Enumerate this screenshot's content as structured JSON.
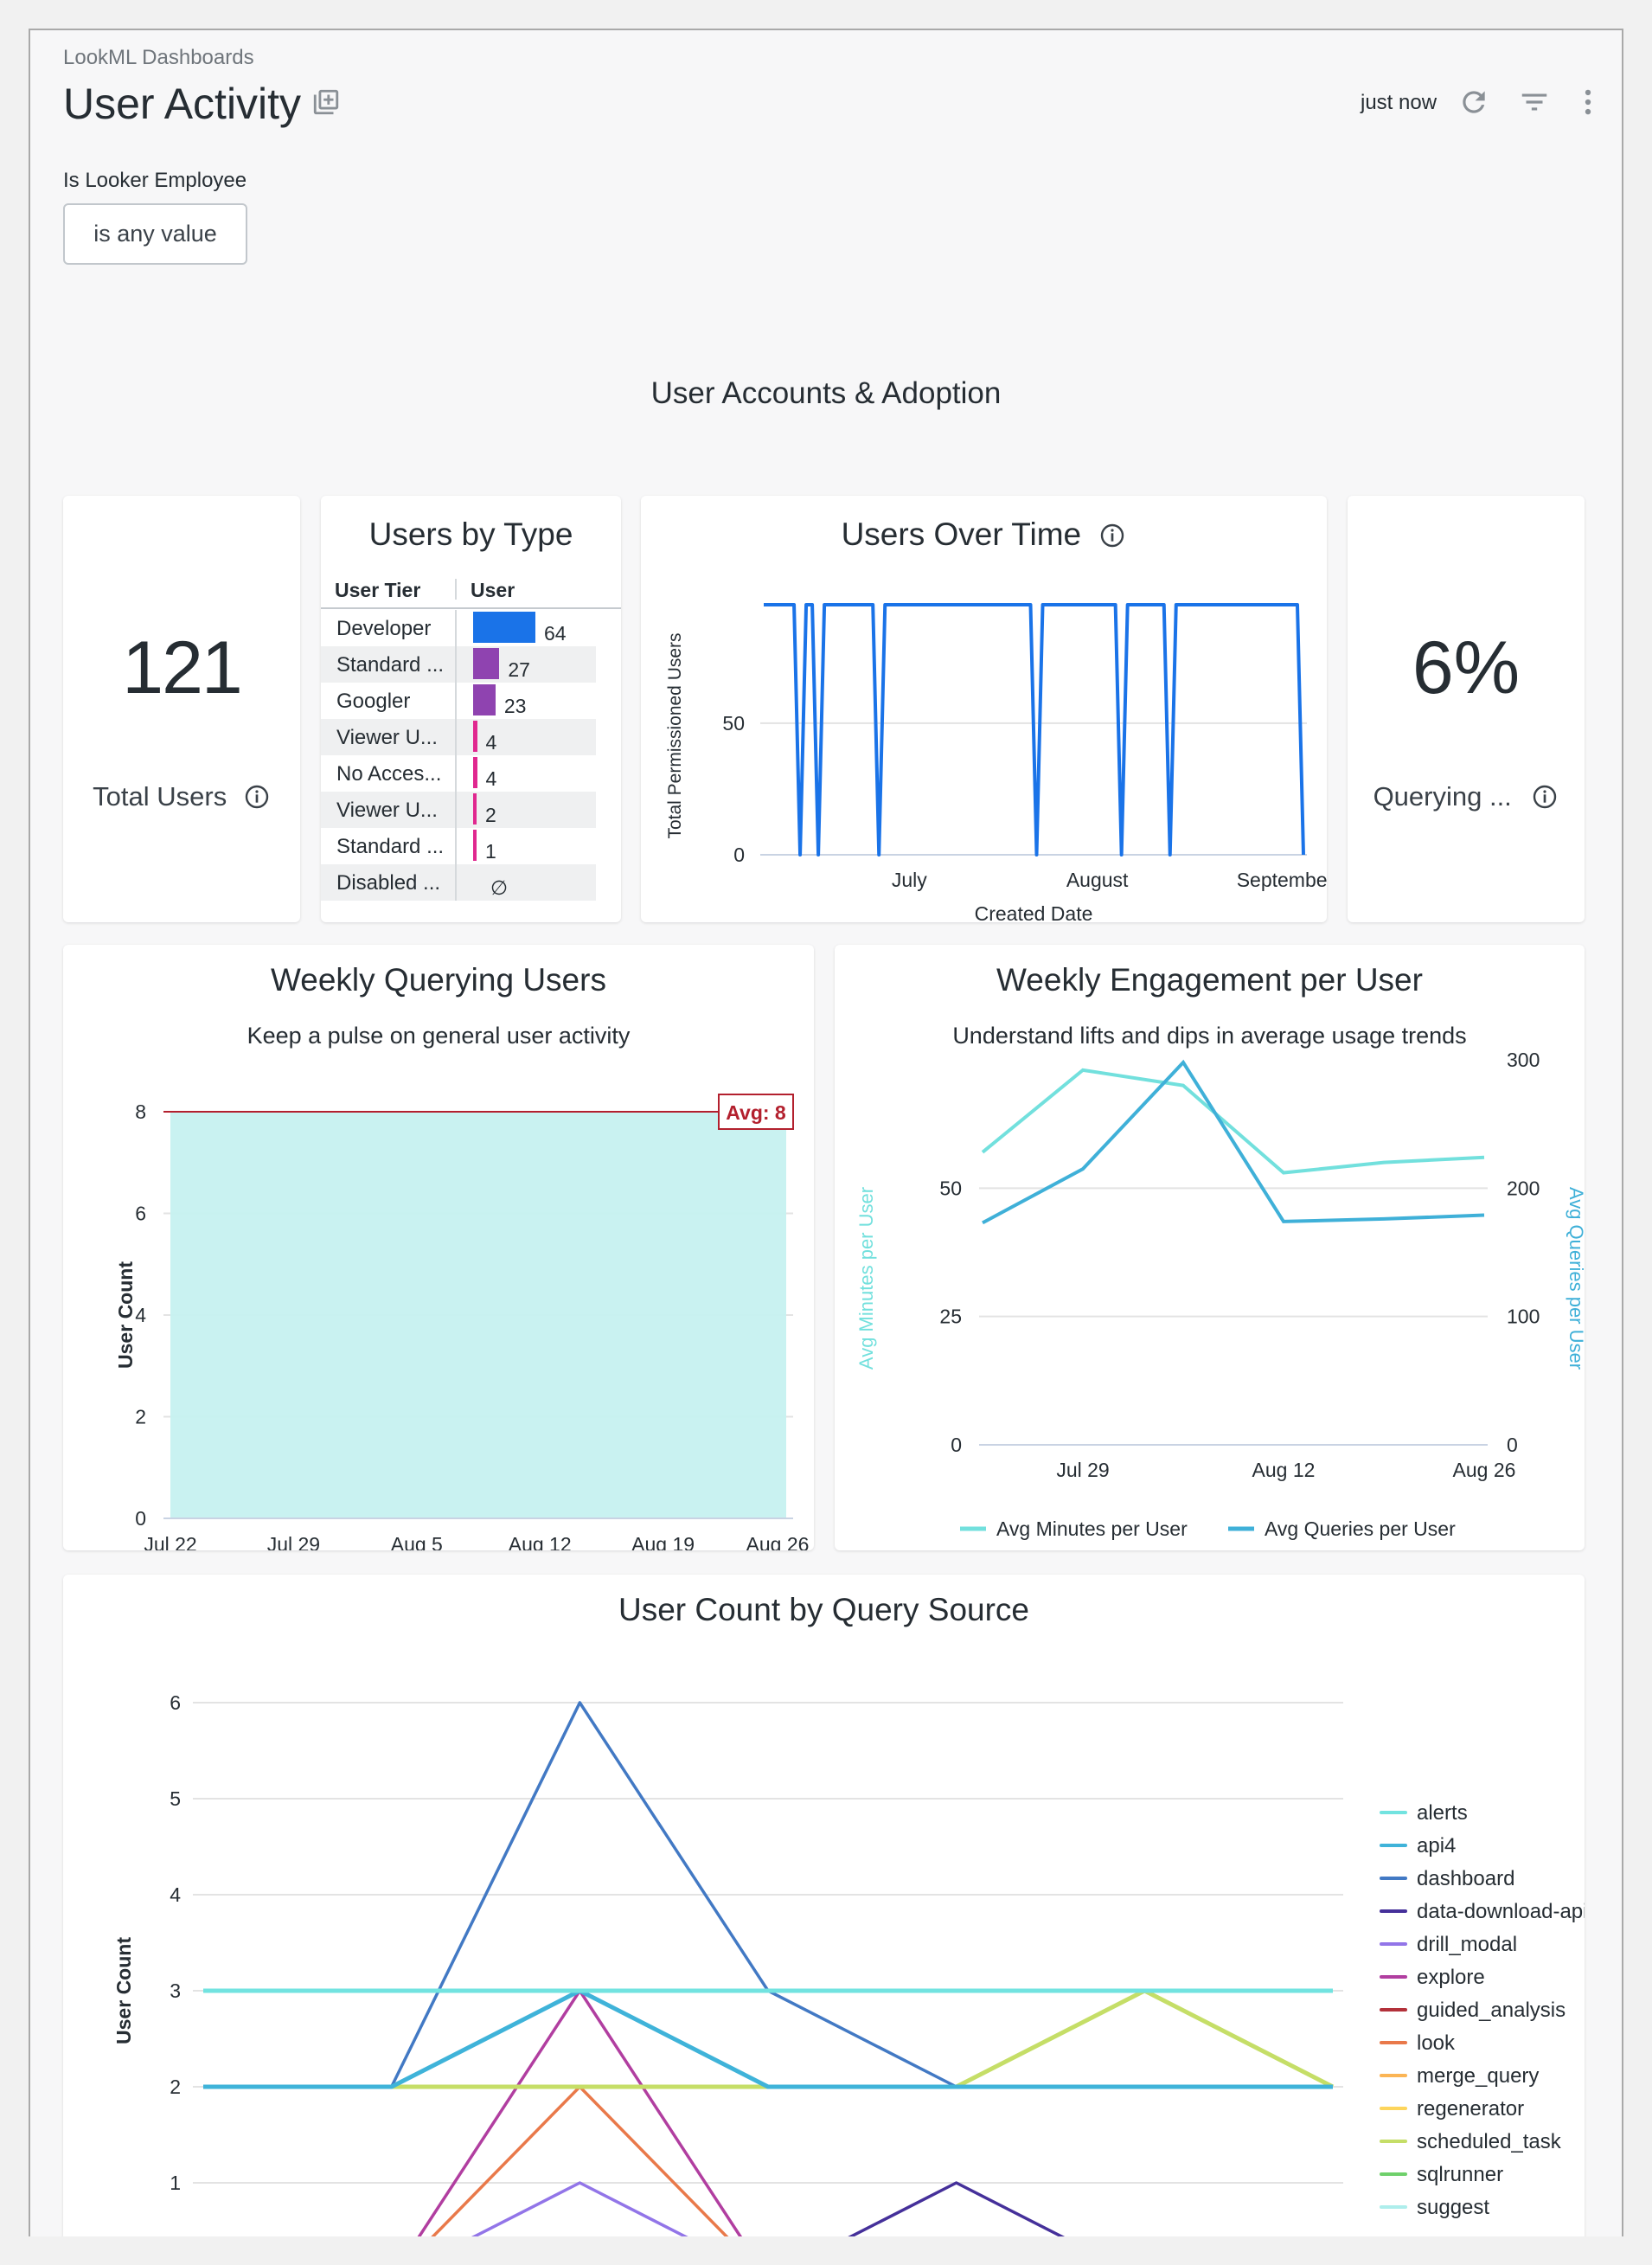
{
  "header": {
    "breadcrumb": "LookML Dashboards",
    "title": "User Activity",
    "last_updated": "just now",
    "icons": [
      "add-to-board-icon",
      "refresh-icon",
      "filter-icon",
      "more-vert-icon"
    ]
  },
  "filter": {
    "label": "Is Looker Employee",
    "value": "is any value"
  },
  "section_title": "User Accounts & Adoption",
  "total_users": {
    "value": "121",
    "label": "Total Users"
  },
  "querying": {
    "value": "6%",
    "label": "Querying ..."
  },
  "users_by_type": {
    "title": "Users by Type",
    "columns": [
      "User Tier",
      "User"
    ],
    "rows": [
      {
        "tier": "Developer",
        "value": 64,
        "label": "64",
        "color": "#1a73e8"
      },
      {
        "tier": "Standard ...",
        "value": 27,
        "label": "27",
        "color": "#8f43b0"
      },
      {
        "tier": "Googler",
        "value": 23,
        "label": "23",
        "color": "#8f43b0"
      },
      {
        "tier": "Viewer U...",
        "value": 4,
        "label": "4",
        "color": "#e0288f"
      },
      {
        "tier": "No Acces...",
        "value": 4,
        "label": "4",
        "color": "#e0288f"
      },
      {
        "tier": "Viewer U...",
        "value": 2,
        "label": "2",
        "color": "#e0288f"
      },
      {
        "tier": "Standard ...",
        "value": 1,
        "label": "1",
        "color": "#e0288f"
      },
      {
        "tier": "Disabled ...",
        "value": null,
        "label": "∅",
        "color": "#e0288f"
      }
    ]
  },
  "chart_data": [
    {
      "id": "users_over_time",
      "type": "line",
      "title": "Users Over Time",
      "xlabel": "Created Date",
      "ylabel": "Total Permissioned Users",
      "yticks": [
        0,
        50
      ],
      "ylim": [
        0,
        95
      ],
      "xticks": [
        {
          "date": "Jul 1",
          "label": "July"
        },
        {
          "date": "Aug 1",
          "label": "August"
        },
        {
          "date": "Sep 1",
          "label": "September"
        }
      ],
      "color": "#1a73e8",
      "points": [
        [
          "Jun 7",
          95
        ],
        [
          "Jun 12",
          95
        ],
        [
          "Jun 13",
          0
        ],
        [
          "Jun 14",
          95
        ],
        [
          "Jun 15",
          95
        ],
        [
          "Jun 16",
          0
        ],
        [
          "Jun 17",
          95
        ],
        [
          "Jun 25",
          95
        ],
        [
          "Jun 26",
          0
        ],
        [
          "Jun 27",
          95
        ],
        [
          "Jul 21",
          95
        ],
        [
          "Jul 22",
          0
        ],
        [
          "Jul 23",
          95
        ],
        [
          "Aug 4",
          95
        ],
        [
          "Aug 5",
          0
        ],
        [
          "Aug 6",
          95
        ],
        [
          "Aug 12",
          95
        ],
        [
          "Aug 13",
          0
        ],
        [
          "Aug 14",
          95
        ],
        [
          "Sep 3",
          95
        ],
        [
          "Sep 4",
          0
        ]
      ]
    },
    {
      "id": "weekly_querying_users",
      "type": "area",
      "title": "Weekly Querying Users",
      "subtitle": "Keep a pulse on general user activity",
      "ylabel": "User Count",
      "categories": [
        "Jul 22",
        "Jul 29",
        "Aug 5",
        "Aug 12",
        "Aug 19",
        "Aug 26"
      ],
      "values": [
        8,
        8,
        8,
        8,
        8,
        8
      ],
      "ylim": [
        0,
        8
      ],
      "yticks": [
        0,
        2,
        4,
        6,
        8
      ],
      "reference_line": {
        "label": "Avg: 8",
        "value": 8,
        "color": "#b3202e"
      },
      "color": "#c6f1f0"
    },
    {
      "id": "weekly_engagement",
      "type": "line",
      "title": "Weekly Engagement per User",
      "subtitle": "Understand lifts and dips in average usage trends",
      "categories": [
        "Jul 22",
        "Jul 29",
        "Aug 5",
        "Aug 12",
        "Aug 19",
        "Aug 26"
      ],
      "xtick_labels": [
        "Jul 29",
        "Aug 12",
        "Aug 26"
      ],
      "y_left": {
        "label": "Avg Minutes per User",
        "ticks": [
          0,
          25,
          50
        ],
        "lim": [
          0,
          75
        ]
      },
      "y_right": {
        "label": "Avg Queries per User",
        "ticks": [
          0,
          100,
          200,
          300
        ],
        "lim": [
          0,
          300
        ]
      },
      "series": [
        {
          "name": "Avg Minutes per User",
          "axis": "left",
          "color": "#72e0dd",
          "values": [
            57,
            73,
            70,
            53,
            55,
            56
          ]
        },
        {
          "name": "Avg Queries per User",
          "axis": "right",
          "color": "#3fb0d8",
          "values": [
            173,
            215,
            298,
            174,
            176,
            179
          ]
        }
      ],
      "legend": "bottom"
    },
    {
      "id": "user_count_by_query_source",
      "type": "line",
      "title": "User Count by Query Source",
      "ylabel": "User Count",
      "yticks": [
        1,
        2,
        3,
        4,
        5,
        6
      ],
      "ylim": [
        0,
        6
      ],
      "legend": "right",
      "series": [
        {
          "name": "alerts",
          "color": "#72e3e0",
          "values": [
            3,
            3,
            3,
            3,
            3,
            3,
            3
          ]
        },
        {
          "name": "api4",
          "color": "#3fb3d9",
          "values": [
            2,
            2,
            3,
            2,
            2,
            2,
            2
          ]
        },
        {
          "name": "dashboard",
          "color": "#4279c4",
          "values": [
            2,
            2,
            6,
            3,
            2,
            2,
            2
          ]
        },
        {
          "name": "data-download-api",
          "color": "#45309a",
          "values": [
            0,
            0,
            0,
            0,
            1,
            0,
            0
          ]
        },
        {
          "name": "drill_modal",
          "color": "#9275e8",
          "values": [
            0,
            0,
            1,
            0,
            0,
            0,
            0
          ]
        },
        {
          "name": "explore",
          "color": "#b13ea0",
          "values": [
            0,
            0,
            3,
            0,
            0,
            0,
            0
          ]
        },
        {
          "name": "guided_analysis",
          "color": "#b3313a",
          "values": null
        },
        {
          "name": "look",
          "color": "#e9794a",
          "values": [
            0,
            0,
            2,
            0,
            0,
            0,
            0
          ]
        },
        {
          "name": "merge_query",
          "color": "#fbb555",
          "values": null
        },
        {
          "name": "regenerator",
          "color": "#fdd55c",
          "values": null
        },
        {
          "name": "scheduled_task",
          "color": "#c5de67",
          "values": [
            2,
            2,
            2,
            2,
            2,
            3,
            2
          ]
        },
        {
          "name": "sqlrunner",
          "color": "#6fd06b",
          "values": null
        },
        {
          "name": "suggest",
          "color": "#aeeeec",
          "values": null
        }
      ]
    }
  ]
}
